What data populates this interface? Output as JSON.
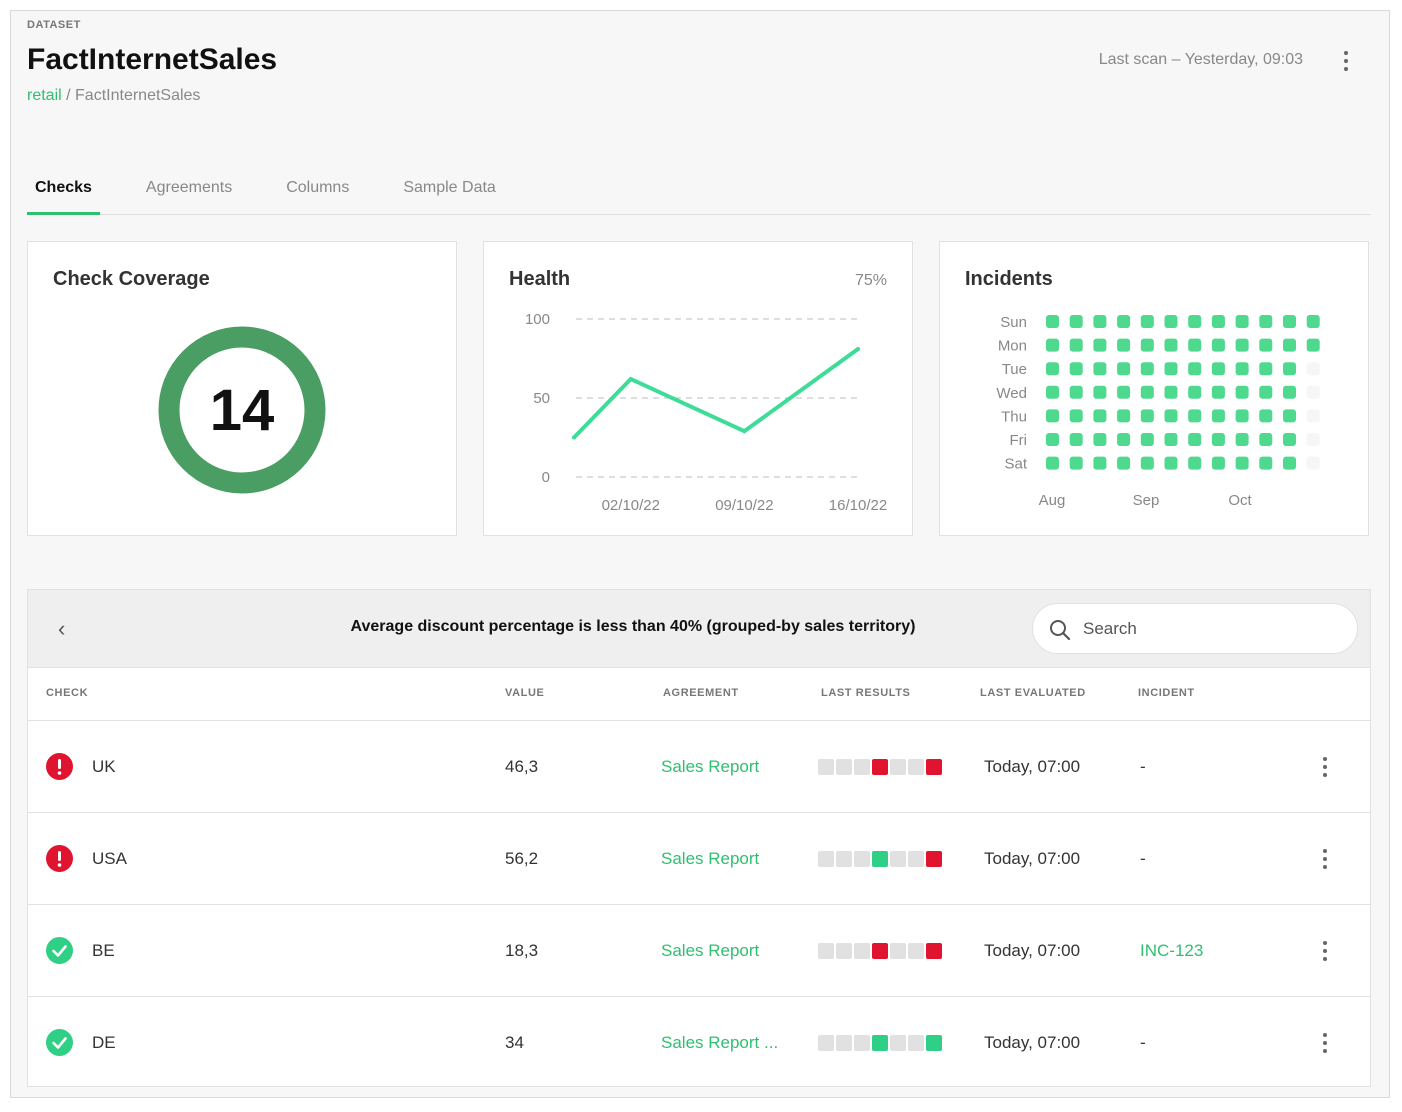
{
  "header": {
    "eyebrow": "DATASET",
    "title": "FactInternetSales",
    "breadcrumb_root": "retail",
    "breadcrumb_sep": " / ",
    "breadcrumb_leaf": "FactInternetSales",
    "last_scan": "Last scan – Yesterday, 09:03"
  },
  "tabs": [
    {
      "label": "Checks",
      "active": true
    },
    {
      "label": "Agreements",
      "active": false
    },
    {
      "label": "Columns",
      "active": false
    },
    {
      "label": "Sample Data",
      "active": false
    }
  ],
  "coverage": {
    "title": "Check Coverage",
    "value": "14",
    "color": "#4a9d63"
  },
  "health": {
    "title": "Health",
    "percent": "75%",
    "y_ticks": [
      "100",
      "50",
      "0"
    ],
    "x_ticks": [
      "02/10/22",
      "09/10/22",
      "16/10/22"
    ],
    "line_color": "#3ddc97"
  },
  "incidents": {
    "title": "Incidents",
    "days": [
      "Sun",
      "Mon",
      "Tue",
      "Wed",
      "Thu",
      "Fri",
      "Sat"
    ],
    "months": [
      "Aug",
      "Sep",
      "Oct"
    ],
    "weeks": 12,
    "cell_color": "#4ed98e",
    "filled_per_day": [
      12,
      12,
      11,
      11,
      11,
      11,
      11
    ]
  },
  "chart_data": {
    "type": "line",
    "title": "Health",
    "x": [
      "",
      "02/10/22",
      "",
      "09/10/22",
      "",
      "16/10/22"
    ],
    "series": [
      {
        "values": [
          25,
          62,
          null,
          29,
          null,
          81
        ]
      }
    ],
    "ylim": [
      0,
      100
    ],
    "yticks": [
      0,
      50,
      100
    ],
    "grid": true
  },
  "panel": {
    "check_title": "Average discount percentage is less than 40% (grouped-by sales territory)",
    "search_placeholder": "Search",
    "columns": {
      "check": "CHECK",
      "value": "VALUE",
      "agreement": "AGREEMENT",
      "last_results": "LAST RESULTS",
      "last_evaluated": "LAST EVALUATED",
      "incident": "INCIDENT"
    },
    "rows": [
      {
        "status": "err",
        "check": "UK",
        "value": "46,3",
        "agreement": "Sales Report",
        "results": [
          "grey",
          "grey",
          "grey",
          "red",
          "grey",
          "grey",
          "red"
        ],
        "evaluated": "Today, 07:00",
        "incident": "-",
        "incident_link": false
      },
      {
        "status": "err",
        "check": "USA",
        "value": "56,2",
        "agreement": "Sales Report",
        "results": [
          "grey",
          "grey",
          "grey",
          "green",
          "grey",
          "grey",
          "red"
        ],
        "evaluated": "Today, 07:00",
        "incident": "-",
        "incident_link": false
      },
      {
        "status": "ok",
        "check": "BE",
        "value": "18,3",
        "agreement": "Sales Report",
        "results": [
          "grey",
          "grey",
          "grey",
          "red",
          "grey",
          "grey",
          "red"
        ],
        "evaluated": "Today, 07:00",
        "incident": "INC-123",
        "incident_link": true
      },
      {
        "status": "ok",
        "check": "DE",
        "value": "34",
        "agreement": "Sales Report ...",
        "results": [
          "grey",
          "grey",
          "grey",
          "green",
          "grey",
          "grey",
          "green"
        ],
        "evaluated": "Today, 07:00",
        "incident": "-",
        "incident_link": false
      }
    ]
  }
}
